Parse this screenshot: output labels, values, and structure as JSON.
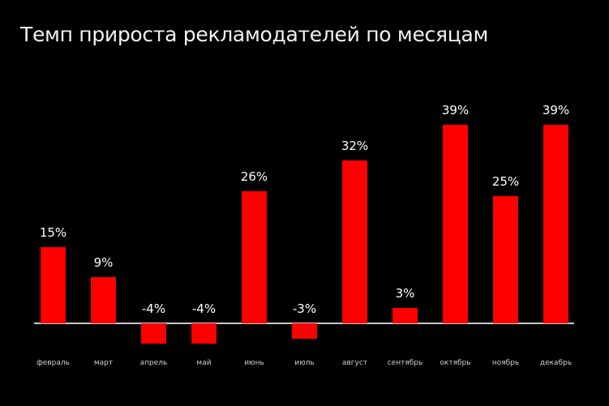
{
  "chart_data": {
    "type": "bar",
    "title": "Темп прироста рекламодателей по месяцам",
    "xlabel": "",
    "ylabel": "",
    "categories": [
      "февраль",
      "март",
      "апрель",
      "май",
      "июнь",
      "июль",
      "август",
      "сентябрь",
      "октябрь",
      "ноябрь",
      "декабрь"
    ],
    "values": [
      15,
      9,
      -4,
      -4,
      26,
      -3,
      32,
      3,
      39,
      25,
      39
    ],
    "labels": [
      "15%",
      "9%",
      "-4%",
      "-4%",
      "26%",
      "-3%",
      "32%",
      "3%",
      "39%",
      "25%",
      "39%"
    ],
    "ylim": [
      -5,
      40
    ],
    "grid": false,
    "legend": null,
    "colors": {
      "bar": "#ff0000",
      "background": "#000000",
      "baseline": "#c8c8c8",
      "text": "#ffffff"
    }
  },
  "title": "Темп прироста рекламодателей по месяцам"
}
